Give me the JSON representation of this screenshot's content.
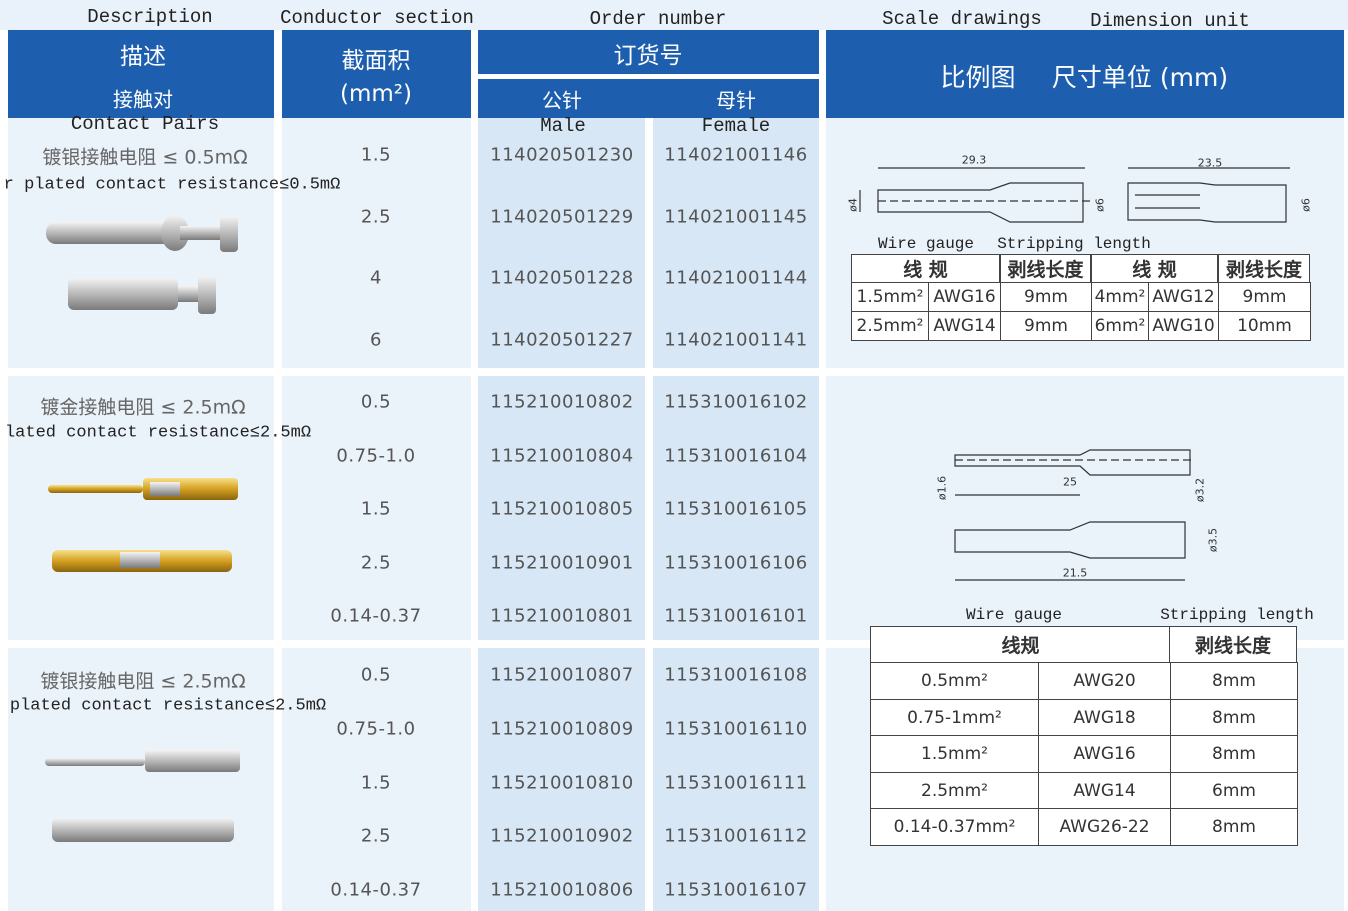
{
  "header": {
    "english": {
      "description": "Description",
      "conductor_section": "Conductor section",
      "order_number": "Order number",
      "scale_drawings": "Scale drawings",
      "dimension_unit": "Dimension unit"
    },
    "chinese": {
      "description": "描述",
      "contact_pairs": "接触对",
      "section": "截面积",
      "section_unit": "(mm²)",
      "order_number": "订货号",
      "male": "公针",
      "female": "母针",
      "scale_drawings": "比例图",
      "dimension_unit": "尺寸单位 (mm)"
    },
    "sub_english": {
      "contact_pairs": "Contact Pairs",
      "male": "Male",
      "female": "Female"
    }
  },
  "groups": [
    {
      "description_cn": "镀银接触电阻 ≤ 0.5mΩ",
      "description_en": "r plated contact resistance≤0.5mΩ",
      "rows": [
        [
          "1.5",
          "114020501230",
          "114021001146"
        ],
        [
          "2.5",
          "114020501229",
          "114021001145"
        ],
        [
          "4",
          "114020501228",
          "114021001144"
        ],
        [
          "6",
          "114020501227",
          "114021001141"
        ]
      ],
      "drawing_labels": [
        "29.3",
        "ø4",
        "ø6",
        "23.5",
        "ø6"
      ],
      "wire_table": {
        "captions": [
          "Wire gauge",
          "Stripping length"
        ],
        "header": [
          "线 规",
          "剥线长度",
          "线 规",
          "剥线长度"
        ],
        "rows": [
          [
            "1.5mm²",
            "AWG16",
            "9mm",
            "4mm²",
            "AWG12",
            "9mm"
          ],
          [
            "2.5mm²",
            "AWG14",
            "9mm",
            "6mm²",
            "AWG10",
            "10mm"
          ]
        ]
      }
    },
    {
      "description_cn": "镀金接触电阻 ≤ 2.5mΩ",
      "description_en": "lated contact resistance≤2.5mΩ",
      "rows": [
        [
          "0.5",
          "115210010802",
          "115310016102"
        ],
        [
          "0.75-1.0",
          "115210010804",
          "115310016104"
        ],
        [
          "1.5",
          "115210010805",
          "115310016105"
        ],
        [
          "2.5",
          "115210010901",
          "115310016106"
        ],
        [
          "0.14-0.37",
          "115210010801",
          "115310016101"
        ]
      ],
      "drawing_labels": [
        "ø1.6",
        "25",
        "ø3.2",
        "ø3.5",
        "21.5"
      ],
      "wire_table": {
        "captions": [
          "Wire gauge",
          "Stripping length"
        ],
        "header": [
          "线规",
          "剥线长度"
        ],
        "rows": [
          [
            "0.5mm²",
            "AWG20",
            "8mm"
          ],
          [
            "0.75-1mm²",
            "AWG18",
            "8mm"
          ],
          [
            "1.5mm²",
            "AWG16",
            "8mm"
          ],
          [
            "2.5mm²",
            "AWG14",
            "6mm"
          ],
          [
            "0.14-0.37mm²",
            "AWG26-22",
            "8mm"
          ]
        ]
      }
    },
    {
      "description_cn": "镀银接触电阻 ≤ 2.5mΩ",
      "description_en": "plated contact resistance≤2.5mΩ",
      "rows": [
        [
          "0.5",
          "115210010807",
          "115310016108"
        ],
        [
          "0.75-1.0",
          "115210010809",
          "115310016110"
        ],
        [
          "1.5",
          "115210010810",
          "115310016111"
        ],
        [
          "2.5",
          "115210010902",
          "115310016112"
        ],
        [
          "0.14-0.37",
          "115210010806",
          "115310016107"
        ]
      ]
    }
  ]
}
